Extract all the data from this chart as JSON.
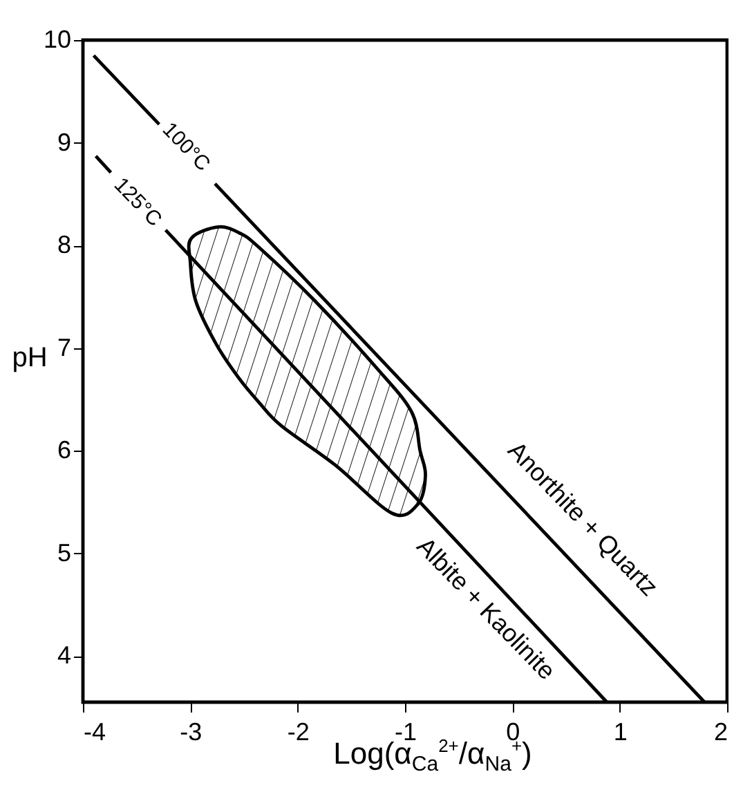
{
  "chart_data": {
    "type": "line",
    "xlabel": "Log(α$_{Ca}$$^{2+}$/α$_{Na}$$^{+}$)",
    "ylabel": "pH",
    "xlim": [
      -4,
      2
    ],
    "xticks": [
      -4,
      -3,
      -2,
      -1,
      0,
      1,
      2
    ],
    "ylim": [
      3.55,
      10
    ],
    "yticks": [
      4,
      5,
      6,
      7,
      8,
      9,
      10
    ],
    "grid": false,
    "marker": "none",
    "line_style": "solid",
    "series": [
      {
        "color": "#000000",
        "x": [
          -3.9,
          -3.29,
          -3.03,
          -2.77,
          1.79
        ],
        "values": [
          9.85,
          9.18,
          null,
          8.6,
          3.55
        ]
      },
      {
        "color": "#000000",
        "x": [
          -3.88,
          -3.74,
          -3.5,
          -3.23,
          0.88
        ],
        "values": [
          8.87,
          8.71,
          null,
          8.15,
          3.55
        ]
      },
      {
        "type": "area",
        "color": "#000000",
        "x": [
          -2.74,
          -2.99,
          -3.0,
          -2.95,
          -2.76,
          -2.55,
          -2.36,
          -2.15,
          -1.65,
          -1.12,
          -0.88,
          -0.81,
          -0.86,
          -0.94,
          -1.26,
          -1.84,
          -2.36,
          -2.54
        ],
        "values": [
          8.18,
          8.07,
          7.84,
          7.46,
          7.04,
          6.71,
          6.47,
          6.24,
          5.86,
          5.39,
          5.48,
          5.76,
          6.0,
          6.38,
          6.8,
          7.46,
          7.98,
          8.12
        ]
      }
    ],
    "annotations": [
      "100°C",
      "125°C",
      "Anorthite + Quartz",
      "Albite + Kaolinite"
    ]
  }
}
